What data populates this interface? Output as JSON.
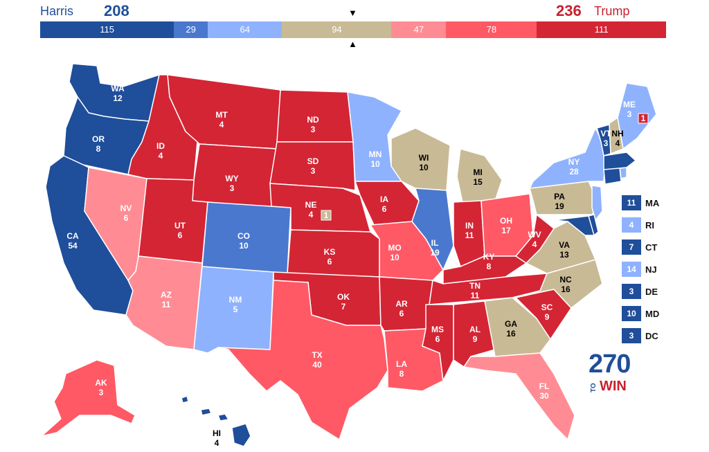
{
  "header": {
    "harris_name": "Harris",
    "harris_total": "208",
    "trump_total": "236",
    "trump_name": "Trump"
  },
  "tally_bar": [
    {
      "label": "115",
      "value": 115,
      "color": "#1f4e9a"
    },
    {
      "label": "29",
      "value": 29,
      "color": "#4a78cf"
    },
    {
      "label": "64",
      "value": 64,
      "color": "#8fb2ff"
    },
    {
      "label": "94",
      "value": 94,
      "color": "#c9ba96"
    },
    {
      "label": "47",
      "value": 47,
      "color": "#ff8c94"
    },
    {
      "label": "78",
      "value": 78,
      "color": "#ff5966"
    },
    {
      "label": "111",
      "value": 111,
      "color": "#d42535"
    }
  ],
  "colors": {
    "safe_d": "#1f4e9a",
    "likely_d": "#4a78cf",
    "lean_d": "#8fb2ff",
    "tossup": "#c9ba96",
    "lean_r": "#ff8c94",
    "likely_r": "#ff5966",
    "safe_r": "#d42535"
  },
  "states": [
    {
      "abbr": "WA",
      "ev": "12",
      "rating": "safe_d"
    },
    {
      "abbr": "OR",
      "ev": "8",
      "rating": "safe_d"
    },
    {
      "abbr": "CA",
      "ev": "54",
      "rating": "safe_d"
    },
    {
      "abbr": "NV",
      "ev": "6",
      "rating": "lean_r"
    },
    {
      "abbr": "ID",
      "ev": "4",
      "rating": "safe_r"
    },
    {
      "abbr": "MT",
      "ev": "4",
      "rating": "safe_r"
    },
    {
      "abbr": "WY",
      "ev": "3",
      "rating": "safe_r"
    },
    {
      "abbr": "UT",
      "ev": "6",
      "rating": "safe_r"
    },
    {
      "abbr": "AZ",
      "ev": "11",
      "rating": "lean_r"
    },
    {
      "abbr": "CO",
      "ev": "10",
      "rating": "likely_d"
    },
    {
      "abbr": "NM",
      "ev": "5",
      "rating": "lean_d"
    },
    {
      "abbr": "ND",
      "ev": "3",
      "rating": "safe_r"
    },
    {
      "abbr": "SD",
      "ev": "3",
      "rating": "safe_r"
    },
    {
      "abbr": "NE",
      "ev": "4",
      "rating": "safe_r"
    },
    {
      "abbr": "KS",
      "ev": "6",
      "rating": "safe_r"
    },
    {
      "abbr": "OK",
      "ev": "7",
      "rating": "safe_r"
    },
    {
      "abbr": "TX",
      "ev": "40",
      "rating": "likely_r"
    },
    {
      "abbr": "MN",
      "ev": "10",
      "rating": "lean_d"
    },
    {
      "abbr": "IA",
      "ev": "6",
      "rating": "safe_r"
    },
    {
      "abbr": "MO",
      "ev": "10",
      "rating": "likely_r"
    },
    {
      "abbr": "AR",
      "ev": "6",
      "rating": "safe_r"
    },
    {
      "abbr": "LA",
      "ev": "8",
      "rating": "likely_r"
    },
    {
      "abbr": "WI",
      "ev": "10",
      "rating": "tossup"
    },
    {
      "abbr": "IL",
      "ev": "19",
      "rating": "likely_d"
    },
    {
      "abbr": "MI",
      "ev": "15",
      "rating": "tossup"
    },
    {
      "abbr": "IN",
      "ev": "11",
      "rating": "safe_r"
    },
    {
      "abbr": "OH",
      "ev": "17",
      "rating": "likely_r"
    },
    {
      "abbr": "KY",
      "ev": "8",
      "rating": "safe_r"
    },
    {
      "abbr": "TN",
      "ev": "11",
      "rating": "safe_r"
    },
    {
      "abbr": "MS",
      "ev": "6",
      "rating": "safe_r"
    },
    {
      "abbr": "AL",
      "ev": "9",
      "rating": "safe_r"
    },
    {
      "abbr": "GA",
      "ev": "16",
      "rating": "tossup"
    },
    {
      "abbr": "FL",
      "ev": "30",
      "rating": "lean_r"
    },
    {
      "abbr": "SC",
      "ev": "9",
      "rating": "safe_r"
    },
    {
      "abbr": "NC",
      "ev": "16",
      "rating": "tossup"
    },
    {
      "abbr": "VA",
      "ev": "13",
      "rating": "tossup"
    },
    {
      "abbr": "WV",
      "ev": "4",
      "rating": "safe_r"
    },
    {
      "abbr": "PA",
      "ev": "19",
      "rating": "tossup"
    },
    {
      "abbr": "NY",
      "ev": "28",
      "rating": "lean_d"
    },
    {
      "abbr": "VT",
      "ev": "3",
      "rating": "safe_d"
    },
    {
      "abbr": "NH",
      "ev": "4",
      "rating": "tossup"
    },
    {
      "abbr": "ME",
      "ev": "3",
      "rating": "lean_d"
    },
    {
      "abbr": "AK",
      "ev": "3",
      "rating": "likely_r"
    },
    {
      "abbr": "HI",
      "ev": "4",
      "rating": "safe_d"
    }
  ],
  "district_badges": [
    {
      "state": "NE",
      "label": "1",
      "rating": "tossup"
    },
    {
      "state": "ME",
      "label": "1",
      "rating": "safe_r"
    }
  ],
  "small_states_legend": [
    {
      "ev": "11",
      "abbr": "MA",
      "rating": "safe_d"
    },
    {
      "ev": "4",
      "abbr": "RI",
      "rating": "lean_d"
    },
    {
      "ev": "7",
      "abbr": "CT",
      "rating": "safe_d"
    },
    {
      "ev": "14",
      "abbr": "NJ",
      "rating": "lean_d"
    },
    {
      "ev": "3",
      "abbr": "DE",
      "rating": "safe_d"
    },
    {
      "ev": "10",
      "abbr": "MD",
      "rating": "safe_d"
    },
    {
      "ev": "3",
      "abbr": "DC",
      "rating": "safe_d"
    }
  ],
  "logo": {
    "number": "270",
    "to": "TO",
    "win": "WIN"
  }
}
